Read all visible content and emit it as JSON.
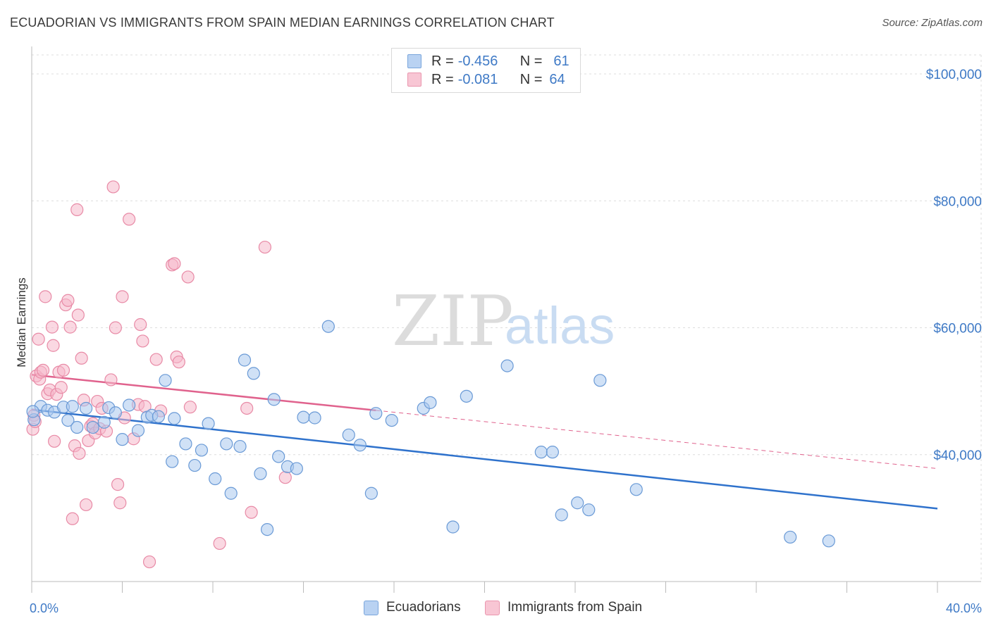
{
  "header": {
    "title": "ECUADORIAN VS IMMIGRANTS FROM SPAIN MEDIAN EARNINGS CORRELATION CHART",
    "source": "Source: ZipAtlas.com"
  },
  "watermark": {
    "zip": "ZIP",
    "atlas": "atlas"
  },
  "legend_top": {
    "row1": {
      "r_label": "R =",
      "r_value": "-0.456",
      "n_label": "N =",
      "n_value": "61"
    },
    "row2": {
      "r_label": "R =",
      "r_value": "-0.081",
      "n_label": "N =",
      "n_value": "64"
    }
  },
  "legend_bottom": {
    "series1": "Ecuadorians",
    "series2": "Immigrants from Spain"
  },
  "colors": {
    "blue_fill": "#a9c8ef",
    "blue_stroke": "#6a9ad6",
    "blue_line": "#2f72cc",
    "pink_fill": "#f6b8ca",
    "pink_stroke": "#e88aa6",
    "pink_line": "#e0628d",
    "tick_text": "#3f7ac6",
    "grid": "#dddddd"
  },
  "chart_data": {
    "type": "scatter",
    "title": "ECUADORIAN VS IMMIGRANTS FROM SPAIN MEDIAN EARNINGS CORRELATION CHART",
    "xlabel": "",
    "ylabel": "Median Earnings",
    "xlim": [
      0,
      40
    ],
    "ylim": [
      20000,
      103000
    ],
    "x_tick_labels": [
      "0.0%",
      "40.0%"
    ],
    "y_ticks": [
      40000,
      60000,
      80000,
      100000
    ],
    "y_tick_labels": [
      "$40,000",
      "$60,000",
      "$80,000",
      "$100,000"
    ],
    "grid": true,
    "legend_position": "top-center",
    "series": [
      {
        "name": "Ecuadorians",
        "R": -0.456,
        "N": 61,
        "trend": {
          "x": [
            0,
            40
          ],
          "y": [
            47100,
            31500
          ]
        },
        "points": [
          [
            0.1,
            45500
          ],
          [
            0.4,
            47600
          ],
          [
            0.7,
            47000
          ],
          [
            1.0,
            46700
          ],
          [
            1.4,
            47500
          ],
          [
            1.6,
            45400
          ],
          [
            1.8,
            47600
          ],
          [
            2.0,
            44300
          ],
          [
            2.4,
            47300
          ],
          [
            2.7,
            44300
          ],
          [
            3.2,
            45100
          ],
          [
            3.4,
            47400
          ],
          [
            3.7,
            46600
          ],
          [
            4.0,
            42400
          ],
          [
            4.3,
            47800
          ],
          [
            4.7,
            43800
          ],
          [
            5.1,
            45900
          ],
          [
            5.3,
            46200
          ],
          [
            5.6,
            46000
          ],
          [
            5.9,
            51700
          ],
          [
            6.3,
            45700
          ],
          [
            6.8,
            41700
          ],
          [
            6.2,
            38900
          ],
          [
            7.2,
            38300
          ],
          [
            7.5,
            40700
          ],
          [
            7.8,
            44900
          ],
          [
            8.1,
            36200
          ],
          [
            8.6,
            41700
          ],
          [
            8.8,
            33900
          ],
          [
            9.2,
            41300
          ],
          [
            9.4,
            54900
          ],
          [
            9.8,
            52800
          ],
          [
            10.1,
            37000
          ],
          [
            10.4,
            28200
          ],
          [
            10.7,
            48700
          ],
          [
            10.9,
            39700
          ],
          [
            11.3,
            38100
          ],
          [
            11.7,
            37800
          ],
          [
            12.0,
            45900
          ],
          [
            12.5,
            45800
          ],
          [
            13.1,
            60200
          ],
          [
            14.0,
            43100
          ],
          [
            14.5,
            41500
          ],
          [
            15.0,
            33900
          ],
          [
            15.2,
            46500
          ],
          [
            15.9,
            45400
          ],
          [
            17.3,
            47300
          ],
          [
            17.6,
            48200
          ],
          [
            18.6,
            28600
          ],
          [
            19.2,
            49200
          ],
          [
            21.0,
            54000
          ],
          [
            22.5,
            40400
          ],
          [
            23.0,
            40400
          ],
          [
            23.4,
            30500
          ],
          [
            24.1,
            32400
          ],
          [
            24.6,
            31300
          ],
          [
            25.1,
            51700
          ],
          [
            26.7,
            34500
          ],
          [
            33.5,
            27000
          ],
          [
            35.2,
            26400
          ],
          [
            0.05,
            46800
          ]
        ]
      },
      {
        "name": "Immigrants from Spain",
        "R": -0.081,
        "N": 64,
        "trend": {
          "x": [
            0,
            40
          ],
          "y": [
            52600,
            37800
          ]
        },
        "trend_solid_until_x": 15.2,
        "points": [
          [
            0.05,
            44000
          ],
          [
            0.1,
            46200
          ],
          [
            0.2,
            52400
          ],
          [
            0.3,
            58200
          ],
          [
            0.35,
            51900
          ],
          [
            0.4,
            53000
          ],
          [
            0.5,
            53300
          ],
          [
            0.6,
            64900
          ],
          [
            0.7,
            49600
          ],
          [
            0.8,
            50200
          ],
          [
            0.9,
            60100
          ],
          [
            0.95,
            57200
          ],
          [
            1.0,
            42100
          ],
          [
            1.1,
            49500
          ],
          [
            1.2,
            53000
          ],
          [
            1.3,
            50600
          ],
          [
            1.4,
            53300
          ],
          [
            1.5,
            63600
          ],
          [
            1.6,
            64300
          ],
          [
            1.7,
            60100
          ],
          [
            1.8,
            29900
          ],
          [
            1.9,
            41400
          ],
          [
            2.0,
            78600
          ],
          [
            2.05,
            62000
          ],
          [
            2.1,
            40200
          ],
          [
            2.2,
            55200
          ],
          [
            2.3,
            48600
          ],
          [
            2.4,
            32100
          ],
          [
            2.5,
            42200
          ],
          [
            2.6,
            44500
          ],
          [
            2.7,
            44900
          ],
          [
            2.8,
            43400
          ],
          [
            2.9,
            48400
          ],
          [
            3.0,
            44100
          ],
          [
            3.1,
            47300
          ],
          [
            3.3,
            43700
          ],
          [
            3.5,
            51800
          ],
          [
            3.6,
            82200
          ],
          [
            3.7,
            60000
          ],
          [
            3.8,
            35300
          ],
          [
            3.9,
            32400
          ],
          [
            4.0,
            64900
          ],
          [
            4.1,
            45800
          ],
          [
            4.3,
            77100
          ],
          [
            4.5,
            42500
          ],
          [
            4.7,
            47900
          ],
          [
            4.8,
            60500
          ],
          [
            4.9,
            57900
          ],
          [
            5.0,
            47600
          ],
          [
            5.2,
            23100
          ],
          [
            5.5,
            55000
          ],
          [
            5.7,
            46900
          ],
          [
            6.2,
            69900
          ],
          [
            6.3,
            70100
          ],
          [
            6.4,
            55400
          ],
          [
            6.5,
            54600
          ],
          [
            6.9,
            68000
          ],
          [
            7.0,
            47500
          ],
          [
            8.3,
            26000
          ],
          [
            9.5,
            47300
          ],
          [
            9.7,
            30900
          ],
          [
            10.3,
            72700
          ],
          [
            11.2,
            36400
          ],
          [
            0.15,
            45200
          ]
        ]
      }
    ]
  }
}
